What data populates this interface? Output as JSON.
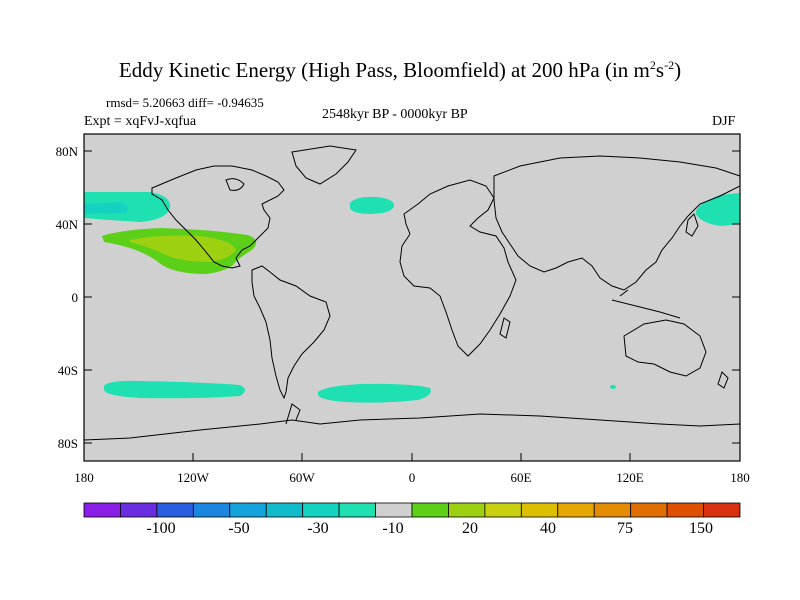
{
  "title": {
    "main": "Eddy Kinetic Energy (High Pass, Bloomfield) at 200 hPa (in m",
    "sup1": "2",
    "mid": "s",
    "sup2": "-2",
    "end": ")"
  },
  "stats": "rmsd= 5.20663  diff= -0.94635",
  "expt": "Expt = xqFvJ-xqfua",
  "period": "2548kyr BP - 0000kyr BP",
  "season": "DJF",
  "lat_ticks": [
    "80N",
    "40N",
    "0",
    "40S",
    "80S"
  ],
  "lon_ticks": [
    "180",
    "120W",
    "60W",
    "0",
    "60E",
    "120E",
    "180"
  ],
  "colorbar": {
    "colors": [
      "#8a1ee8",
      "#6a2ee0",
      "#2a5ee0",
      "#1a86e0",
      "#14a4dc",
      "#10bccc",
      "#14d2c0",
      "#1ee0b0",
      "#d0d0d0",
      "#5cd018",
      "#9cd010",
      "#c8d010",
      "#dcc000",
      "#e4a800",
      "#e48c00",
      "#e06e00",
      "#dc5000",
      "#d83010"
    ],
    "labels": [
      "-100",
      "-50",
      "-30",
      "-10",
      "20",
      "40",
      "75",
      "150"
    ]
  },
  "field": {
    "colors": {
      "land_ocean": "#d0d0d0",
      "neg": "#1ee0b0",
      "pos1": "#5cd018",
      "pos2": "#9cd010",
      "frame": "#000000"
    }
  }
}
